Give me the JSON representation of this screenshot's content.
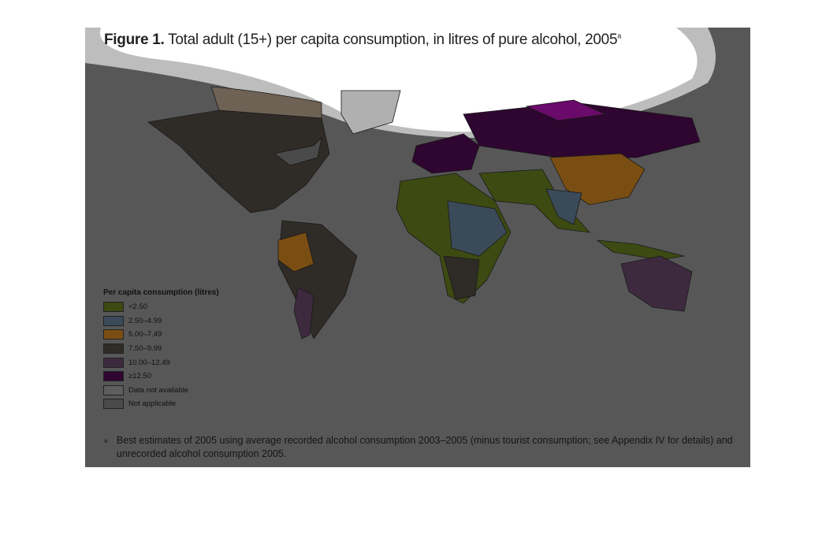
{
  "figure": {
    "title_label": "Figure 1.",
    "title": "Total adult (15+) per capita consumption, in litres of pure alcohol, 2005",
    "title_note": "a",
    "legend": {
      "title": "Per capita consumption (litres)",
      "items": [
        {
          "label": "<2.50",
          "color": "#3d4a12"
        },
        {
          "label": "2.50–4.99",
          "color": "#3a4a58"
        },
        {
          "label": "5.00–7.49",
          "color": "#7a4e12"
        },
        {
          "label": "7.50–9.99",
          "color": "#2f2b26"
        },
        {
          "label": "10.00–12.49",
          "color": "#3e2a3e"
        },
        {
          "label": "≥12.50",
          "color": "#2e0630"
        },
        {
          "label": "Data not available",
          "color": "#5e5e5e"
        },
        {
          "label": "Not applicable",
          "color": "#4a4a4a"
        }
      ]
    },
    "footnote_marker": "a",
    "footnote": "Best estimates of 2005 using average recorded alcohol consumption 2003–2005 (minus tourist consumption; see Appendix IV for details) and unrecorded alcohol consumption 2005."
  }
}
